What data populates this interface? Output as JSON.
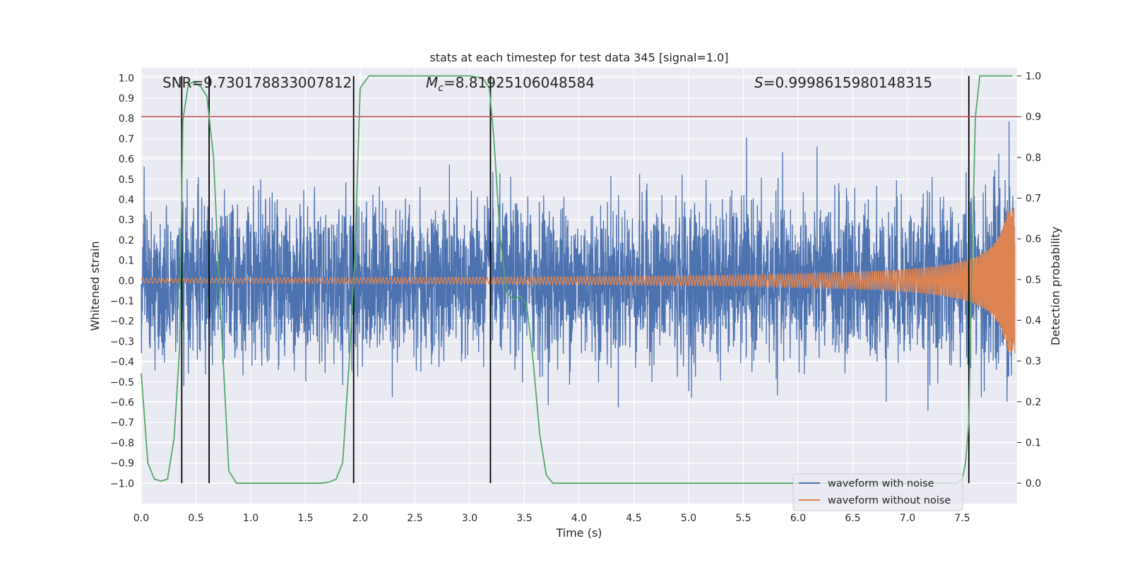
{
  "chart_data": {
    "type": "line",
    "title": "stats at each timestep for test data 345 [signal=1.0]",
    "xlabel": "Time (s)",
    "ylabel_left": "Whitened strain",
    "ylabel_right": "Detection probability",
    "xlim": [
      0.0,
      8.0
    ],
    "ylim_left": [
      -1.1,
      1.05
    ],
    "ylim_right": [
      -0.05,
      1.02
    ],
    "x_ticks": [
      0.0,
      0.5,
      1.0,
      1.5,
      2.0,
      2.5,
      3.0,
      3.5,
      4.0,
      4.5,
      5.0,
      5.5,
      6.0,
      6.5,
      7.0,
      7.5
    ],
    "x_tick_labels": [
      "0.0",
      "0.5",
      "1.0",
      "1.5",
      "2.0",
      "2.5",
      "3.0",
      "3.5",
      "4.0",
      "4.5",
      "5.0",
      "5.5",
      "6.0",
      "6.5",
      "7.0",
      "7.5"
    ],
    "y_left_ticks": [
      -1.0,
      -0.9,
      -0.8,
      -0.7,
      -0.6,
      -0.5,
      -0.4,
      -0.3,
      -0.2,
      -0.1,
      0.0,
      0.1,
      0.2,
      0.3,
      0.4,
      0.5,
      0.6,
      0.7,
      0.8,
      0.9,
      1.0
    ],
    "y_left_tick_labels": [
      "−1.0",
      "−0.9",
      "−0.8",
      "−0.7",
      "−0.6",
      "−0.5",
      "−0.4",
      "−0.3",
      "−0.2",
      "−0.1",
      "0.0",
      "0.1",
      "0.2",
      "0.3",
      "0.4",
      "0.5",
      "0.6",
      "0.7",
      "0.8",
      "0.9",
      "1.0"
    ],
    "y_right_ticks": [
      0.0,
      0.1,
      0.2,
      0.3,
      0.4,
      0.5,
      0.6,
      0.7,
      0.8,
      0.9,
      1.0
    ],
    "y_right_tick_labels": [
      "0.0",
      "0.1",
      "0.2",
      "0.3",
      "0.4",
      "0.5",
      "0.6",
      "0.7",
      "0.8",
      "0.9",
      "1.0"
    ],
    "annotations": {
      "snr": "SNR=9.730178833007812",
      "mc_symbol": "M",
      "mc_sub": "c",
      "mc_value": "=8.81925106048584",
      "s_symbol": "S",
      "s_value": "=0.9998615980148315"
    },
    "threshold_right": 0.9,
    "event_lines_x": [
      0.37,
      0.62,
      1.94,
      3.19,
      7.56
    ],
    "detection_probability": {
      "x": [
        0.0,
        0.06,
        0.12,
        0.18,
        0.24,
        0.3,
        0.35,
        0.38,
        0.43,
        0.48,
        0.54,
        0.6,
        0.66,
        0.72,
        0.8,
        0.87,
        0.95,
        1.2,
        1.5,
        1.65,
        1.72,
        1.78,
        1.84,
        1.9,
        1.95,
        2.0,
        2.08,
        2.5,
        3.0,
        3.12,
        3.18,
        3.22,
        3.28,
        3.34,
        3.4,
        3.46,
        3.52,
        3.58,
        3.64,
        3.7,
        3.76,
        4.0,
        5.0,
        6.0,
        7.0,
        7.45,
        7.5,
        7.53,
        7.56,
        7.58,
        7.62,
        7.66,
        7.7,
        7.8,
        7.96
      ],
      "y": [
        0.27,
        0.05,
        0.01,
        0.005,
        0.01,
        0.11,
        0.33,
        0.89,
        0.98,
        0.985,
        0.975,
        0.95,
        0.8,
        0.45,
        0.03,
        0.0,
        0.0,
        0.0,
        0.0,
        0.0,
        0.003,
        0.01,
        0.05,
        0.3,
        0.55,
        0.97,
        1.0,
        1.0,
        1.0,
        0.995,
        0.97,
        0.85,
        0.6,
        0.47,
        0.45,
        0.46,
        0.44,
        0.3,
        0.12,
        0.02,
        0.0,
        0.0,
        0.0,
        0.0,
        0.0,
        0.0,
        0.01,
        0.05,
        0.15,
        0.45,
        0.9,
        1.0,
        1.0,
        1.0,
        1.0
      ]
    },
    "series": [
      {
        "name": "waveform with noise",
        "color": "#4c72b0"
      },
      {
        "name": "waveform without noise",
        "color": "#dd8452"
      },
      {
        "name": "detection probability",
        "color": "#55a868"
      }
    ],
    "legend": {
      "position": "lower-right",
      "labels": [
        "waveform with noise",
        "waveform without noise"
      ]
    },
    "colors": {
      "background": "#eaeaf2",
      "grid": "#ffffff",
      "noise": "#4c72b0",
      "clean": "#dd8452",
      "probability": "#55a868",
      "threshold": "#c44e52",
      "event_line": "#000000"
    }
  }
}
